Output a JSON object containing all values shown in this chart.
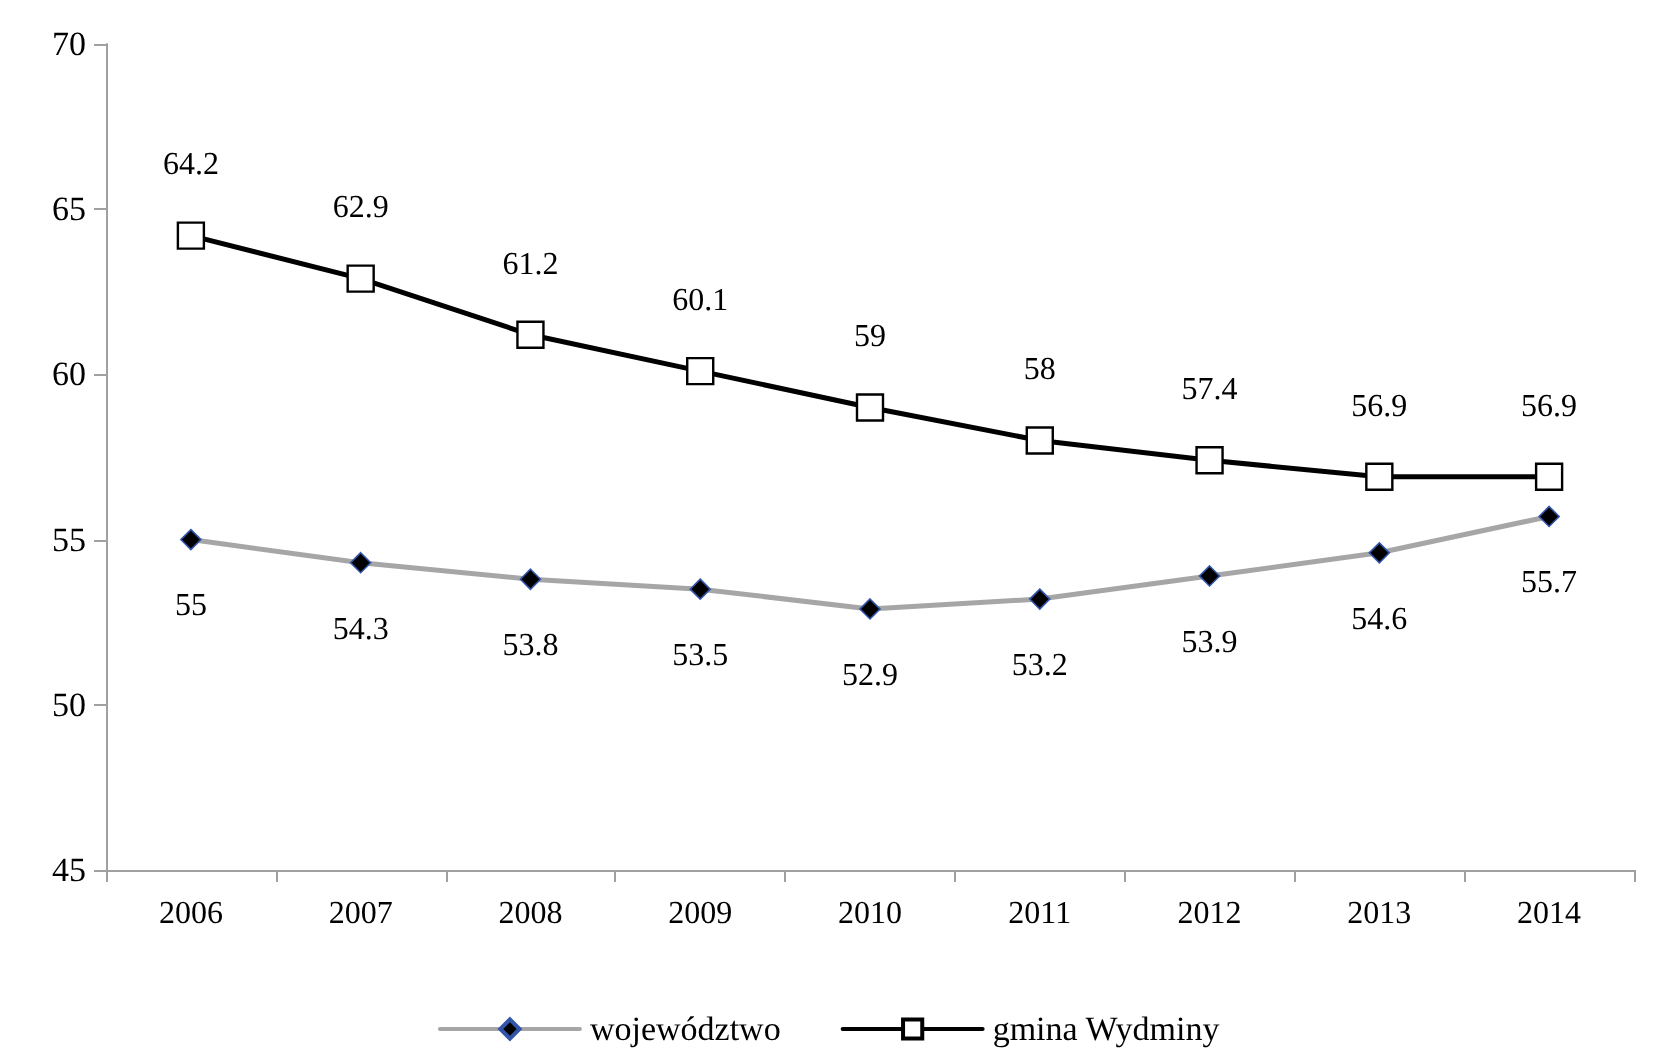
{
  "chart_data": {
    "type": "line",
    "categories": [
      "2006",
      "2007",
      "2008",
      "2009",
      "2010",
      "2011",
      "2012",
      "2013",
      "2014"
    ],
    "series": [
      {
        "name": "województwo",
        "color": "#a6a6a6",
        "marker": "diamond",
        "values": [
          55,
          54.3,
          53.8,
          53.5,
          52.9,
          53.2,
          53.9,
          54.6,
          55.7
        ]
      },
      {
        "name": "gmina Wydminy",
        "color": "#000000",
        "marker": "square",
        "values": [
          64.2,
          62.9,
          61.2,
          60.1,
          59,
          58,
          57.4,
          56.9,
          56.9
        ]
      }
    ],
    "ylim": [
      45,
      70
    ],
    "yticks": [
      45,
      50,
      55,
      60,
      65,
      70
    ],
    "grid": false,
    "legend": "bottom",
    "data_labels": true,
    "line_style": "solid"
  }
}
